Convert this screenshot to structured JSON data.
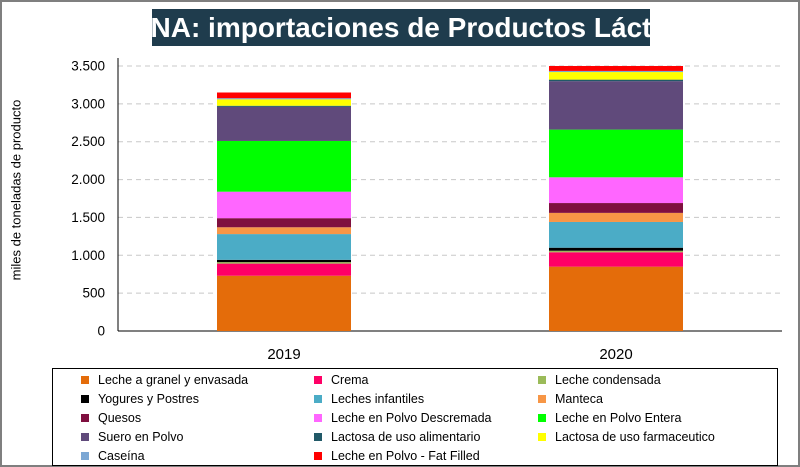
{
  "page": {
    "title": "CHINA: importaciones de Productos Lácteos"
  },
  "chart_data": {
    "type": "stacked-bar",
    "title": "CHINA: importaciones de Productos Lácteos",
    "xlabel": "",
    "ylabel": "miles de toneladas de producto",
    "ylim": [
      0,
      3500
    ],
    "yticks": [
      0,
      500,
      1000,
      1500,
      2000,
      2500,
      3000,
      3500
    ],
    "ytick_labels": [
      "0",
      "500",
      "1.000",
      "1.500",
      "2.000",
      "2.500",
      "3.000",
      "3.500"
    ],
    "grid": true,
    "legend_position": "bottom",
    "categories": [
      "2019",
      "2020"
    ],
    "series": [
      {
        "name": "Leche a granel y envasada",
        "color": "#e46c0a",
        "values": [
          730,
          850
        ]
      },
      {
        "name": "Crema",
        "color": "#ff0066",
        "values": [
          160,
          190
        ]
      },
      {
        "name": "Leche condensada",
        "color": "#9bbb59",
        "values": [
          20,
          20
        ]
      },
      {
        "name": "Yogures y Postres",
        "color": "#000000",
        "values": [
          30,
          40
        ]
      },
      {
        "name": "Leches infantiles",
        "color": "#4bacc6",
        "values": [
          340,
          340
        ]
      },
      {
        "name": "Manteca",
        "color": "#f79646",
        "values": [
          90,
          120
        ]
      },
      {
        "name": "Quesos",
        "color": "#7f0f3f",
        "values": [
          120,
          130
        ]
      },
      {
        "name": "Leche en Polvo Descremada",
        "color": "#ff66ff",
        "values": [
          350,
          340
        ]
      },
      {
        "name": "Leche en Polvo Entera",
        "color": "#00ff00",
        "values": [
          670,
          630
        ]
      },
      {
        "name": "Suero en Polvo",
        "color": "#604a7b",
        "values": [
          450,
          640
        ]
      },
      {
        "name": "Lactosa de uso alimentario",
        "color": "#215968",
        "values": [
          15,
          20
        ]
      },
      {
        "name": "Lactosa de uso farmaceutico",
        "color": "#ffff00",
        "values": [
          85,
          100
        ]
      },
      {
        "name": "Caseína",
        "color": "#7ba7d4",
        "values": [
          15,
          15
        ]
      },
      {
        "name": "Leche en Polvo - Fat Filled",
        "color": "#ff0000",
        "values": [
          75,
          65
        ]
      }
    ]
  }
}
